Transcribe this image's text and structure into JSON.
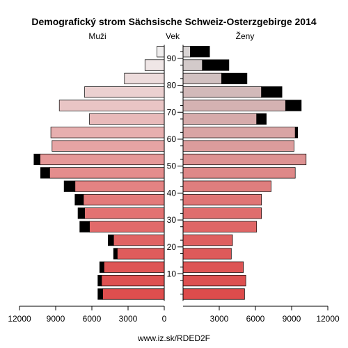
{
  "chart_data": {
    "type": "bar",
    "title": "Demografický strom Sächsische Schweiz-Osterzgebirge 2014",
    "left_label": "Muži",
    "center_label": "Vek",
    "right_label": "Ženy",
    "footer": "www.iz.sk/RDED2F",
    "xlim": [
      0,
      12000
    ],
    "x_ticks": [
      12000,
      9000,
      6000,
      3000,
      0,
      3000,
      6000,
      9000,
      12000
    ],
    "age_ticks": [
      10,
      20,
      30,
      40,
      50,
      60,
      70,
      80,
      90
    ],
    "age_groups": [
      "0-4",
      "5-9",
      "10-14",
      "15-19",
      "20-24",
      "25-29",
      "30-34",
      "35-39",
      "40-44",
      "45-49",
      "50-54",
      "55-59",
      "60-64",
      "65-69",
      "70-74",
      "75-79",
      "80-84",
      "85-89",
      "90+"
    ],
    "series": [
      {
        "name": "Muži",
        "values": [
          5100,
          5200,
          5000,
          3900,
          4200,
          6200,
          6600,
          6700,
          7400,
          9500,
          10300,
          9300,
          9400,
          6200,
          8700,
          6600,
          3300,
          1600,
          600
        ],
        "surplus": [
          400,
          300,
          350,
          300,
          450,
          800,
          550,
          700,
          900,
          750,
          500,
          0,
          0,
          0,
          0,
          0,
          0,
          0,
          0
        ],
        "colors": [
          "#de4e4e",
          "#de5151",
          "#de5555",
          "#df5c5c",
          "#e06363",
          "#e16a6a",
          "#e27272",
          "#e37a7a",
          "#e48383",
          "#e48d8d",
          "#e59898",
          "#e6a4a4",
          "#e7afaf",
          "#e8baba",
          "#e9c5c5",
          "#ebd0d0",
          "#eddcdc",
          "#efe6e6",
          "#f0eeee"
        ]
      },
      {
        "name": "Ženy",
        "values": [
          5100,
          5200,
          5000,
          4000,
          4100,
          6100,
          6500,
          6500,
          7300,
          9300,
          10200,
          9200,
          9300,
          6100,
          8500,
          6500,
          3200,
          1600,
          600
        ],
        "surplus": [
          0,
          0,
          0,
          0,
          0,
          0,
          0,
          0,
          0,
          0,
          0,
          0,
          200,
          800,
          1300,
          1700,
          2100,
          2200,
          1600
        ],
        "colors": [
          "#dd4c4c",
          "#dd5050",
          "#dd5454",
          "#de5a5a",
          "#de6060",
          "#df6666",
          "#df6d6d",
          "#df7575",
          "#df7e7e",
          "#de8888",
          "#dd9292",
          "#dc9c9c",
          "#d9a4a4",
          "#d6abab",
          "#d4b2b2",
          "#d2b9b9",
          "#d1c1c1",
          "#d3caca",
          "#d8d4d4"
        ]
      }
    ]
  }
}
